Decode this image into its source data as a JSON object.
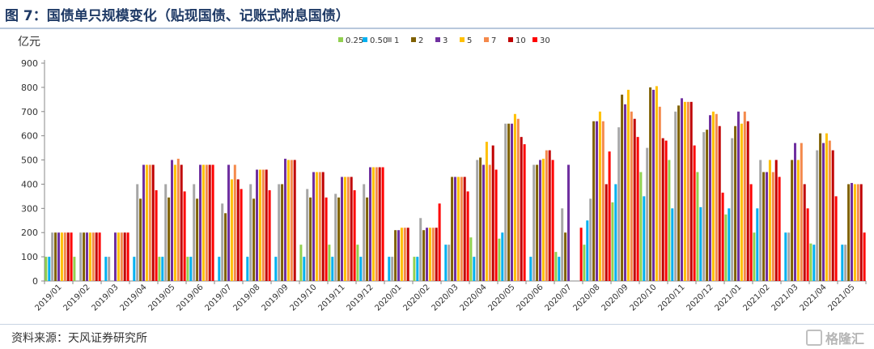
{
  "title": "图 7：国债单只规模变化（贴现国债、记账式附息国债）",
  "source": "资料来源：天风证券研究所",
  "watermark": "格隆汇",
  "chart_data": {
    "type": "bar",
    "ylabel": "亿元",
    "ylim": [
      0,
      900
    ],
    "yticks": [
      0,
      100,
      200,
      300,
      400,
      500,
      600,
      700,
      800,
      900
    ],
    "legend_position": "top",
    "categories": [
      "2019/01",
      "2019/02",
      "2019/03",
      "2019/04",
      "2019/05",
      "2019/06",
      "2019/07",
      "2019/08",
      "2019/09",
      "2019/10",
      "2019/11",
      "2019/12",
      "2020/01",
      "2020/02",
      "2020/03",
      "2020/04",
      "2020/05",
      "2020/06",
      "2020/07",
      "2020/08",
      "2020/09",
      "2020/10",
      "2020/11",
      "2020/12",
      "2021/01",
      "2021/02",
      "2021/03",
      "2021/04",
      "2021/05"
    ],
    "series": [
      {
        "name": "0.25",
        "color": "#92d050",
        "values": [
          100,
          100,
          0,
          0,
          100,
          100,
          0,
          0,
          0,
          150,
          150,
          150,
          0,
          100,
          0,
          180,
          175,
          0,
          120,
          150,
          325,
          450,
          500,
          450,
          275,
          200,
          0,
          155,
          0
        ]
      },
      {
        "name": "0.50",
        "color": "#00b0f0",
        "values": [
          100,
          0,
          100,
          100,
          100,
          100,
          100,
          100,
          100,
          100,
          100,
          100,
          100,
          100,
          150,
          100,
          200,
          100,
          100,
          250,
          400,
          350,
          300,
          305,
          300,
          300,
          200,
          150,
          150
        ]
      },
      {
        "name": "1",
        "color": "#a6a6a6",
        "values": [
          200,
          200,
          100,
          400,
          400,
          400,
          320,
          400,
          400,
          380,
          360,
          400,
          100,
          260,
          150,
          500,
          650,
          480,
          300,
          340,
          635,
          550,
          700,
          615,
          590,
          500,
          200,
          540,
          150
        ]
      },
      {
        "name": "2",
        "color": "#7f6000",
        "values": [
          200,
          200,
          0,
          340,
          345,
          340,
          280,
          340,
          400,
          345,
          345,
          345,
          210,
          210,
          430,
          510,
          650,
          480,
          200,
          660,
          770,
          800,
          725,
          625,
          640,
          450,
          500,
          610,
          400
        ]
      },
      {
        "name": "3",
        "color": "#7030a0",
        "values": [
          200,
          200,
          200,
          480,
          500,
          480,
          480,
          460,
          505,
          450,
          430,
          470,
          210,
          220,
          430,
          480,
          650,
          500,
          480,
          660,
          730,
          790,
          755,
          685,
          700,
          450,
          570,
          570,
          405
        ]
      },
      {
        "name": "5",
        "color": "#ffc000",
        "values": [
          200,
          200,
          200,
          480,
          480,
          480,
          420,
          460,
          500,
          450,
          430,
          470,
          220,
          220,
          430,
          575,
          690,
          505,
          0,
          700,
          790,
          805,
          740,
          700,
          650,
          500,
          500,
          610,
          400
        ]
      },
      {
        "name": "7",
        "color": "#f4894b",
        "values": [
          200,
          200,
          200,
          480,
          505,
          480,
          480,
          460,
          500,
          450,
          430,
          470,
          220,
          220,
          430,
          480,
          670,
          540,
          0,
          660,
          700,
          720,
          740,
          690,
          700,
          450,
          570,
          580,
          400
        ]
      },
      {
        "name": "10",
        "color": "#c00000",
        "values": [
          200,
          200,
          200,
          480,
          480,
          480,
          420,
          460,
          500,
          450,
          430,
          470,
          220,
          220,
          430,
          560,
          595,
          540,
          0,
          400,
          670,
          590,
          740,
          640,
          660,
          500,
          400,
          540,
          400
        ]
      },
      {
        "name": "30",
        "color": "#ff0000",
        "values": [
          200,
          200,
          200,
          375,
          370,
          480,
          380,
          375,
          0,
          345,
          375,
          470,
          0,
          320,
          370,
          460,
          565,
          500,
          220,
          535,
          595,
          580,
          560,
          365,
          400,
          430,
          300,
          350,
          200
        ]
      }
    ]
  }
}
